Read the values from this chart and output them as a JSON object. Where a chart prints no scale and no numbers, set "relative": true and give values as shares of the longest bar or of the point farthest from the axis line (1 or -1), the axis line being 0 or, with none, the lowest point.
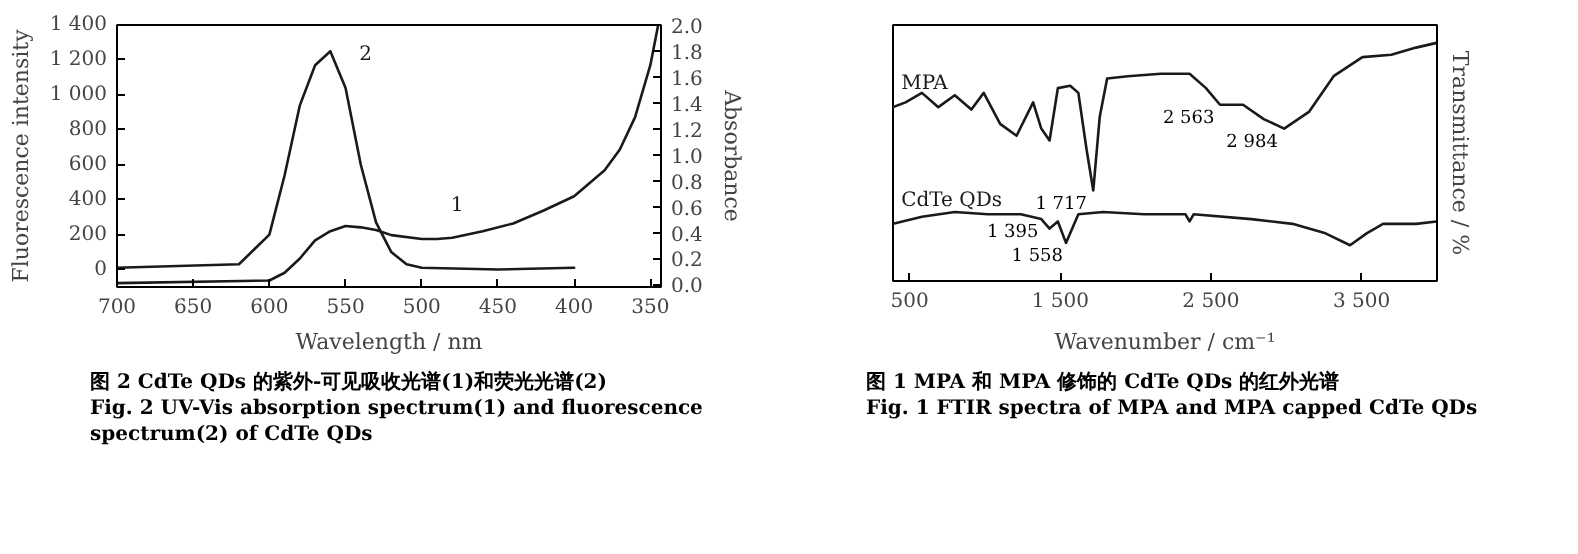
{
  "chart_data": [
    {
      "type": "line",
      "xlabel": "Wavelength / nm",
      "ylabel": "Fluorescence intensity",
      "y2label": "Absorbance",
      "xlim": [
        700,
        343
      ],
      "xticks": [
        700,
        650,
        600,
        550,
        500,
        450,
        400,
        350
      ],
      "ylim": [
        -100,
        1400
      ],
      "yticks": [
        0,
        200,
        400,
        600,
        800,
        {
          "value": 1000,
          "label": "1 000"
        },
        {
          "value": 1200,
          "label": "1 200"
        },
        {
          "value": 1400,
          "label": "1 400"
        }
      ],
      "y2lim": [
        -0.02,
        2.0
      ],
      "y2ticks": [
        {
          "value": 0,
          "label": "0.0"
        },
        0.2,
        0.4,
        0.6,
        0.8,
        {
          "value": 1,
          "label": "1.0"
        },
        1.2,
        1.4,
        1.6,
        1.8,
        {
          "value": 2,
          "label": "2.0"
        }
      ],
      "grid": false,
      "series": [
        {
          "name": "2",
          "color": "#1a1a1a",
          "x": [
            700,
            620,
            600,
            590,
            580,
            570,
            560,
            550,
            540,
            530,
            520,
            510,
            500,
            450,
            400
          ],
          "values": [
            10,
            30,
            200,
            540,
            940,
            1170,
            1250,
            1040,
            600,
            270,
            100,
            30,
            10,
            0,
            10
          ]
        },
        {
          "name": "1",
          "color": "#1a1a1a",
          "axis": "y2",
          "x": [
            700,
            600,
            590,
            580,
            570,
            560,
            550,
            540,
            530,
            520,
            500,
            490,
            480,
            460,
            440,
            420,
            400,
            380,
            370,
            360,
            350,
            345
          ],
          "values": [
            0.01,
            0.03,
            0.09,
            0.2,
            0.34,
            0.41,
            0.45,
            0.44,
            0.42,
            0.38,
            0.35,
            0.35,
            0.36,
            0.41,
            0.47,
            0.57,
            0.68,
            0.88,
            1.04,
            1.29,
            1.69,
            1.99
          ]
        }
      ],
      "annotations": [
        "图 2 CdTe QDs 的紫外-可见吸收光谱(1)和荧光光谱(2)",
        "Fig. 2 UV-Vis absorption spectrum(1) and fluorescence spectrum(2) of CdTe QDs"
      ]
    },
    {
      "type": "line",
      "relative": true,
      "xlabel": "Wavenumber / cm⁻¹",
      "ylabel": "Transmittance / %",
      "xlim": [
        390,
        4000
      ],
      "xticks": [
        500,
        {
          "value": 1500,
          "label": "1 500"
        },
        {
          "value": 2500,
          "label": "2 500"
        },
        {
          "value": 3500,
          "label": "3 500"
        }
      ],
      "grid": false,
      "series": [
        {
          "name": "MPA",
          "color": "#1a1a1a",
          "x": [
            391,
            473,
            582,
            691,
            800,
            910,
            992,
            1101,
            1210,
            1320,
            1374,
            1429,
            1484,
            1566,
            1620,
            1675,
            1719,
            1762,
            1811,
            1948,
            2167,
            2358,
            2467,
            2560,
            2713,
            2850,
            2986,
            3150,
            3314,
            3505,
            3697,
            3861,
            3997
          ],
          "values": [
            0.73,
            0.75,
            0.79,
            0.73,
            0.78,
            0.72,
            0.79,
            0.66,
            0.61,
            0.75,
            0.64,
            0.59,
            0.81,
            0.82,
            0.79,
            0.55,
            0.38,
            0.69,
            0.85,
            0.86,
            0.87,
            0.87,
            0.81,
            0.74,
            0.74,
            0.68,
            0.64,
            0.71,
            0.86,
            0.94,
            0.95,
            0.98,
            1
          ]
        },
        {
          "name": "CdTe QDs",
          "color": "#1a1a1a",
          "x": [
            391,
            582,
            800,
            1019,
            1238,
            1374,
            1429,
            1484,
            1538,
            1620,
            1784,
            2057,
            2331,
            2358,
            2385,
            2768,
            3041,
            3260,
            3423,
            3533,
            3642,
            3861,
            3997
          ],
          "values": [
            0.24,
            0.27,
            0.29,
            0.28,
            0.28,
            0.26,
            0.22,
            0.25,
            0.16,
            0.28,
            0.29,
            0.28,
            0.28,
            0.25,
            0.28,
            0.26,
            0.24,
            0.2,
            0.15,
            0.2,
            0.24,
            0.24,
            0.25
          ]
        }
      ],
      "annotations": [
        {
          "text": "1 717",
          "x": 1717,
          "y": 0.38
        },
        {
          "text": "2 563",
          "x": 2563,
          "y": 0.74
        },
        {
          "text": "2 984",
          "x": 2984,
          "y": 0.64
        },
        {
          "text": "1 395",
          "x": 1395,
          "y": 0.26
        },
        {
          "text": "1 558",
          "x": 1558,
          "y": 0.16
        },
        "图 1 MPA 和 MPA 修饰的 CdTe QDs 的红外光谱",
        "Fig. 1 FTIR spectra of MPA and MPA capped CdTe QDs"
      ]
    }
  ]
}
